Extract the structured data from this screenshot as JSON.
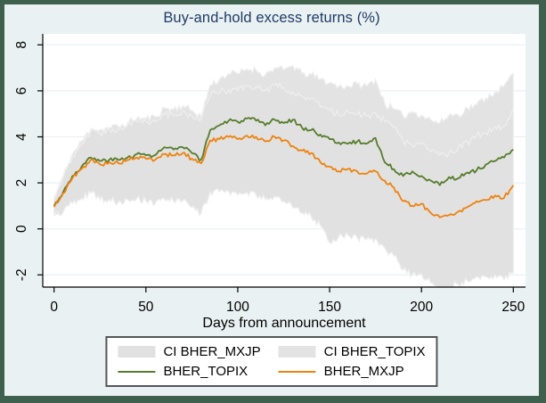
{
  "figure": {
    "title": "Buy-and-hold excess returns (%)",
    "xlabel": "Days from announcement"
  },
  "colors": {
    "border": "#40604e",
    "background": "#eaf1f2",
    "plot_bg": "#ffffff",
    "grid": "#e6edf1",
    "axis": "#000000",
    "title": "#1e3a66",
    "ci_topix": "#e3e3e3",
    "ci_mxjp": "#e1e1e1",
    "ci_edge": "#efefef",
    "bher_topix": "#557c2c",
    "bher_mxjp": "#ee820e"
  },
  "legend": {
    "items": [
      {
        "label": "CI BHER_MXJP",
        "type": "band",
        "color_key": "ci_mxjp"
      },
      {
        "label": "CI BHER_TOPIX",
        "type": "band",
        "color_key": "ci_topix"
      },
      {
        "label": "BHER_TOPIX",
        "type": "line",
        "color_key": "bher_topix"
      },
      {
        "label": "BHER_MXJP",
        "type": "line",
        "color_key": "bher_mxjp"
      }
    ]
  },
  "chart_data": {
    "type": "line",
    "title": "Buy-and-hold excess returns (%)",
    "xlabel": "Days from announcement",
    "ylabel": "",
    "xlim": [
      0,
      250
    ],
    "ylim": [
      -2,
      8
    ],
    "x_ticks": [
      0,
      50,
      100,
      150,
      200,
      250
    ],
    "y_ticks": [
      -2,
      0,
      2,
      4,
      6,
      8
    ],
    "grid": true,
    "legend_position": "bottom",
    "x": [
      0,
      5,
      10,
      15,
      20,
      25,
      30,
      35,
      40,
      45,
      50,
      55,
      60,
      65,
      70,
      75,
      80,
      85,
      90,
      95,
      100,
      105,
      110,
      115,
      120,
      125,
      130,
      135,
      140,
      145,
      150,
      155,
      160,
      165,
      170,
      175,
      180,
      185,
      190,
      195,
      200,
      205,
      210,
      215,
      220,
      225,
      230,
      235,
      240,
      245,
      250
    ],
    "series": [
      {
        "name": "BHER_TOPIX",
        "color_key": "bher_topix",
        "values": [
          1.0,
          1.6,
          2.3,
          2.7,
          3.1,
          2.95,
          3.0,
          3.0,
          3.1,
          3.25,
          3.2,
          3.2,
          3.55,
          3.45,
          3.55,
          3.3,
          3.0,
          4.3,
          4.5,
          4.7,
          4.65,
          4.8,
          4.7,
          4.5,
          4.75,
          4.6,
          4.75,
          4.4,
          4.3,
          4.1,
          3.9,
          3.75,
          3.7,
          3.8,
          3.7,
          3.95,
          2.9,
          2.6,
          2.3,
          2.5,
          2.3,
          2.1,
          1.9,
          2.25,
          2.2,
          2.45,
          2.55,
          2.8,
          2.95,
          3.1,
          3.45
        ]
      },
      {
        "name": "BHER_MXJP",
        "color_key": "bher_mxjp",
        "values": [
          0.95,
          1.55,
          2.2,
          2.6,
          3.0,
          2.8,
          2.9,
          2.85,
          3.0,
          3.1,
          3.05,
          3.0,
          3.25,
          3.2,
          3.3,
          3.05,
          2.85,
          3.85,
          3.9,
          4.0,
          3.9,
          4.05,
          4.0,
          3.8,
          4.0,
          3.85,
          3.6,
          3.4,
          3.3,
          2.9,
          2.7,
          2.5,
          2.6,
          2.5,
          2.4,
          2.5,
          2.1,
          1.8,
          1.2,
          1.0,
          1.1,
          0.7,
          0.5,
          0.6,
          0.75,
          0.95,
          1.2,
          1.25,
          1.45,
          1.35,
          1.9
        ]
      }
    ],
    "bands": [
      {
        "name": "CI BHER_TOPIX",
        "color_key": "ci_topix",
        "upper": [
          1.35,
          2.3,
          3.25,
          3.8,
          4.35,
          4.3,
          4.4,
          4.45,
          4.6,
          4.8,
          4.8,
          4.85,
          5.25,
          5.2,
          5.35,
          5.15,
          4.9,
          6.25,
          6.5,
          6.75,
          6.75,
          6.95,
          6.9,
          6.7,
          7.0,
          6.9,
          7.1,
          6.75,
          6.7,
          6.5,
          6.35,
          6.2,
          6.2,
          6.3,
          6.2,
          6.5,
          5.45,
          5.2,
          4.9,
          5.1,
          4.95,
          4.75,
          4.6,
          4.95,
          4.95,
          5.25,
          5.4,
          5.7,
          5.95,
          6.2,
          6.75
        ],
        "lower": [
          0.65,
          0.9,
          1.35,
          1.6,
          1.85,
          1.6,
          1.6,
          1.55,
          1.6,
          1.7,
          1.6,
          1.55,
          1.85,
          1.7,
          1.75,
          1.45,
          1.1,
          2.35,
          2.5,
          2.65,
          2.55,
          2.65,
          2.5,
          2.3,
          2.5,
          2.3,
          2.4,
          2.05,
          1.9,
          1.7,
          1.45,
          1.3,
          1.2,
          1.3,
          1.2,
          1.4,
          0.35,
          0.0,
          -0.3,
          -0.1,
          -0.35,
          -0.55,
          -0.8,
          -0.45,
          -0.55,
          -0.35,
          -0.3,
          -0.1,
          -0.05,
          0.0,
          0.15
        ]
      },
      {
        "name": "CI BHER_MXJP",
        "color_key": "ci_mxjp",
        "upper": [
          1.3,
          2.25,
          3.15,
          3.7,
          4.25,
          4.15,
          4.3,
          4.3,
          4.5,
          4.65,
          4.65,
          4.65,
          4.95,
          4.95,
          5.1,
          4.9,
          4.75,
          5.8,
          5.9,
          6.05,
          6.0,
          6.2,
          6.2,
          6.0,
          6.25,
          6.15,
          5.95,
          5.75,
          5.7,
          5.3,
          5.15,
          4.95,
          5.1,
          5.0,
          4.9,
          5.05,
          4.65,
          4.4,
          3.8,
          3.6,
          3.75,
          3.35,
          3.2,
          3.3,
          3.5,
          3.75,
          4.05,
          4.15,
          4.45,
          4.45,
          5.2
        ],
        "lower": [
          0.55,
          0.74,
          1.11,
          1.33,
          1.56,
          1.25,
          1.29,
          1.18,
          1.27,
          1.32,
          1.21,
          1.1,
          1.29,
          1.19,
          1.23,
          0.92,
          0.66,
          1.61,
          1.6,
          1.64,
          1.48,
          1.58,
          1.47,
          1.27,
          1.41,
          1.2,
          0.9,
          0.7,
          0.54,
          0.14,
          -0.6,
          -0.32,
          -0.28,
          -0.38,
          -0.48,
          -0.43,
          -0.83,
          -1.19,
          -1.79,
          -1.99,
          -1.95,
          -2.35,
          -2.6,
          -2.51,
          -2.41,
          -2.27,
          -2.08,
          -2.09,
          -2.0,
          -2.22,
          -1.9
        ]
      }
    ]
  }
}
